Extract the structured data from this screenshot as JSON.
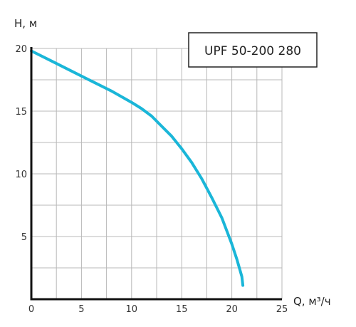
{
  "chart_data": {
    "type": "line",
    "title": "UPF 50-200 280",
    "xlabel": "Q, м³/ч",
    "ylabel": "H, м",
    "xlim": [
      0,
      25
    ],
    "ylim": [
      0,
      20
    ],
    "x_ticks": [
      "0",
      "5",
      "10",
      "15",
      "20",
      "25"
    ],
    "y_ticks": [
      "5",
      "10",
      "15",
      "20"
    ],
    "grid": true,
    "series": [
      {
        "x": [
          0,
          2,
          4,
          6,
          8,
          10,
          11,
          12,
          13,
          14,
          15,
          16,
          17,
          18,
          19,
          20,
          20.5,
          21,
          21.1
        ],
        "y": [
          19.8,
          19.0,
          18.2,
          17.4,
          16.6,
          15.7,
          15.2,
          14.6,
          13.8,
          13.0,
          12.0,
          10.9,
          9.6,
          8.1,
          6.5,
          4.4,
          3.2,
          1.8,
          1.1
        ]
      }
    ]
  },
  "colors": {
    "curve": "#1ab6d8",
    "grid": "#b8b8b8",
    "axis": "#111111"
  }
}
